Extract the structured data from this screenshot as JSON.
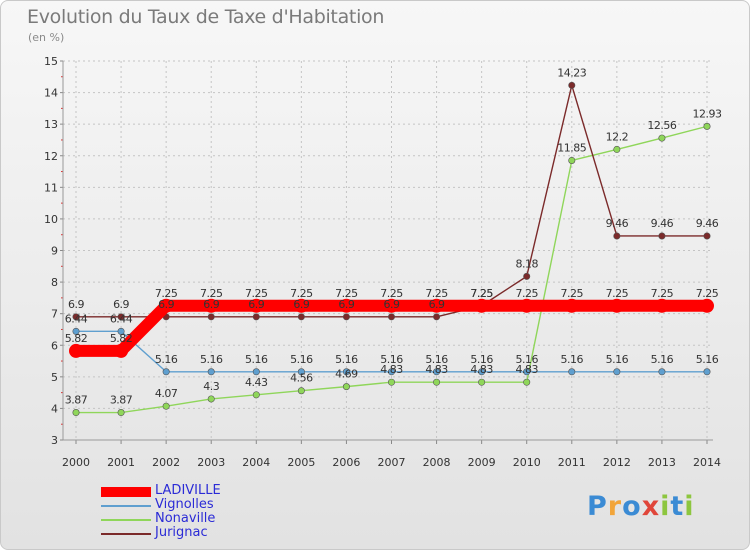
{
  "title": "Evolution du Taux de Taxe d'Habitation",
  "subtitle": "(en %)",
  "logo_text": "Proxiti",
  "chart_data": {
    "type": "line",
    "title": "Evolution du Taux de Taxe d'Habitation",
    "ylabel": "(en %)",
    "xlabel": "",
    "x": [
      "2000",
      "2001",
      "2002",
      "2003",
      "2004",
      "2005",
      "2006",
      "2007",
      "2008",
      "2009",
      "2010",
      "2011",
      "2012",
      "2013",
      "2014"
    ],
    "ylim": [
      3,
      15
    ],
    "yticks": [
      "3",
      "4",
      "5",
      "6",
      "7",
      "8",
      "9",
      "10",
      "11",
      "12",
      "13",
      "14",
      "15"
    ],
    "grid": true,
    "legend_position": "bottom-left",
    "series": [
      {
        "name": "LADIVILLE",
        "color": "#ff0000",
        "values": [
          5.82,
          5.82,
          7.25,
          7.25,
          7.25,
          7.25,
          7.25,
          7.25,
          7.25,
          7.25,
          7.25,
          7.25,
          7.25,
          7.25,
          7.25
        ]
      },
      {
        "name": "Vignolles",
        "color": "#5f9fcf",
        "values": [
          6.44,
          6.44,
          5.16,
          5.16,
          5.16,
          5.16,
          5.16,
          5.16,
          5.16,
          5.16,
          5.16,
          5.16,
          5.16,
          5.16,
          5.16
        ]
      },
      {
        "name": "Nonaville",
        "color": "#8fd65a",
        "values": [
          3.87,
          3.87,
          4.07,
          4.3,
          4.43,
          4.56,
          4.69,
          4.83,
          4.83,
          4.83,
          4.83,
          11.85,
          12.2,
          12.56,
          12.93
        ]
      },
      {
        "name": "Jurignac",
        "color": "#7b2a2a",
        "values": [
          6.9,
          6.9,
          6.9,
          6.9,
          6.9,
          6.9,
          6.9,
          6.9,
          6.9,
          7.25,
          8.18,
          14.23,
          9.46,
          9.46,
          9.46
        ]
      }
    ],
    "data_labels": [
      [
        "5.82",
        "5.82",
        "7.25",
        "7.25",
        "7.25",
        "7.25",
        "7.25",
        "7.25",
        "7.25",
        "7.25",
        "7.25",
        "7.25",
        "7.25",
        "7.25",
        "7.25"
      ],
      [
        "6.44",
        "6.44",
        "5.16",
        "5.16",
        "5.16",
        "5.16",
        "5.16",
        "5.16",
        "5.16",
        "5.16",
        "5.16",
        "5.16",
        "5.16",
        "5.16",
        "5.16"
      ],
      [
        "3.87",
        "3.87",
        "4.07",
        "4.3",
        "4.43",
        "4.56",
        "4.69",
        "4.83",
        "4.83",
        "4.83",
        "4.83",
        "11.85",
        "12.2",
        "12.56",
        "12.93"
      ],
      [
        "6.9",
        "6.9",
        "6.9",
        "6.9",
        "6.9",
        "6.9",
        "6.9",
        "6.9",
        "6.9",
        "7.25",
        "8.18",
        "14.23",
        "9.46",
        "9.46",
        "9.46"
      ]
    ]
  }
}
